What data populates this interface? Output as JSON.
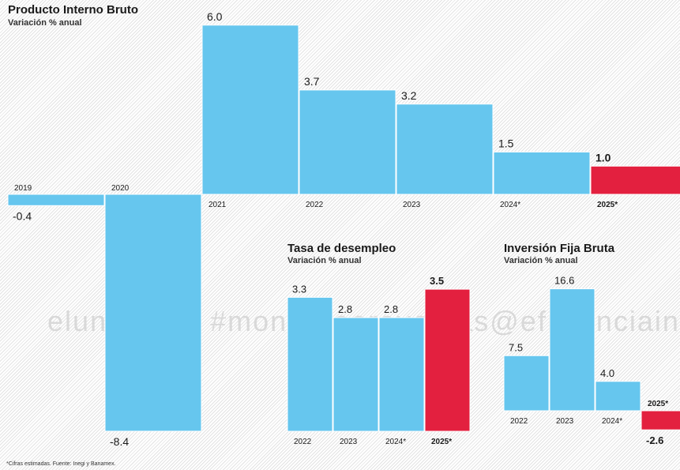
{
  "watermark": "eluniversal #monitoreoreventas@eficienciainf",
  "footnote": "*Cifras estimadas. Fuente: Inegi y Banamex.",
  "colors": {
    "bar": "#66c6ee",
    "highlight": "#e3203f",
    "text": "#1a1a1a"
  },
  "chart_data": [
    {
      "type": "bar",
      "title": "Producto Interno Bruto",
      "subtitle": "Variación % anual",
      "categories": [
        "2019",
        "2020",
        "2021",
        "2022",
        "2023",
        "2024*",
        "2025*"
      ],
      "values": [
        -0.4,
        -8.4,
        6.0,
        3.7,
        3.2,
        1.5,
        1.0
      ],
      "value_labels": [
        "-0.4",
        "-8.4",
        "6.0",
        "3.7",
        "3.2",
        "1.5",
        "1.0"
      ],
      "highlight": [
        false,
        false,
        false,
        false,
        false,
        false,
        true
      ]
    },
    {
      "type": "bar",
      "title": "Tasa de desempleo",
      "subtitle": "Variación % anual",
      "categories": [
        "2022",
        "2023",
        "2024*",
        "2025*"
      ],
      "values": [
        3.3,
        2.8,
        2.8,
        3.5
      ],
      "value_labels": [
        "3.3",
        "2.8",
        "2.8",
        "3.5"
      ],
      "highlight": [
        false,
        false,
        false,
        true
      ]
    },
    {
      "type": "bar",
      "title": "Inversión Fija Bruta",
      "subtitle": "Variación % anual",
      "categories": [
        "2022",
        "2023",
        "2024*",
        "2025*"
      ],
      "values": [
        7.5,
        16.6,
        4.0,
        -2.6
      ],
      "value_labels": [
        "7.5",
        "16.6",
        "4.0",
        "-2.6"
      ],
      "highlight": [
        false,
        false,
        false,
        true
      ]
    }
  ]
}
